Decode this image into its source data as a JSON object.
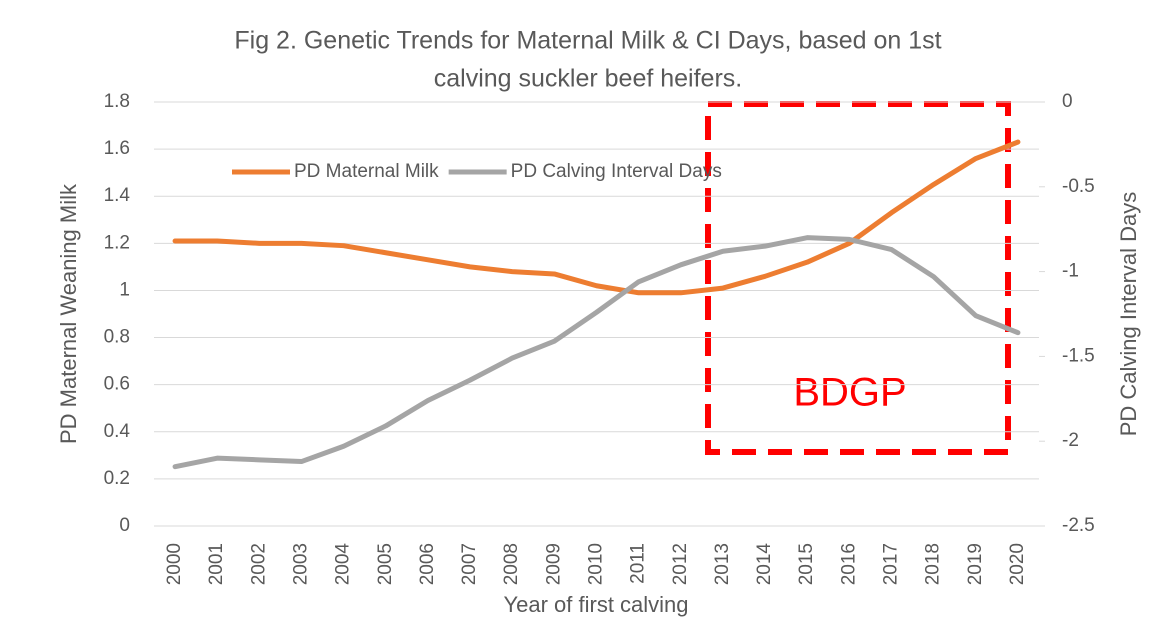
{
  "chart_data": {
    "type": "line",
    "title": [
      "Fig 2. Genetic Trends for Maternal Milk & CI Days, based on 1st",
      "calving suckler beef heifers."
    ],
    "x_label": "Year of first calving",
    "y_label": "PD Maternal Weaning Milk",
    "y2_label": "PD Calving Interval Days",
    "categories": [
      "2000",
      "2001",
      "2002",
      "2003",
      "2004",
      "2005",
      "2006",
      "2007",
      "2008",
      "2009",
      "2010",
      "2011",
      "2012",
      "2013",
      "2014",
      "2015",
      "2016",
      "2017",
      "2018",
      "2019",
      "2020"
    ],
    "series": [
      {
        "name": "PD Maternal Milk",
        "color": "#ed7d31",
        "axis": "y",
        "values": [
          1.21,
          1.21,
          1.2,
          1.2,
          1.19,
          1.16,
          1.13,
          1.1,
          1.08,
          1.07,
          1.02,
          0.99,
          0.99,
          1.01,
          1.06,
          1.12,
          1.2,
          1.33,
          1.45,
          1.56,
          1.63
        ]
      },
      {
        "name": "PD Calving Interval Days",
        "color": "#a5a5a5",
        "axis": "y2",
        "values": [
          -2.15,
          -2.1,
          -2.11,
          -2.12,
          -2.03,
          -1.91,
          -1.76,
          -1.64,
          -1.51,
          -1.41,
          -1.24,
          -1.06,
          -0.96,
          -0.88,
          -0.85,
          -0.8,
          -0.81,
          -0.87,
          -1.03,
          -1.26,
          -1.36
        ]
      }
    ],
    "ylim": [
      0,
      1.8
    ],
    "yticks": [
      0,
      0.2,
      0.4,
      0.6,
      0.8,
      1,
      1.2,
      1.4,
      1.6,
      1.8
    ],
    "y2lim": [
      -2.5,
      0
    ],
    "y2ticks": [
      -2.5,
      -2,
      -1.5,
      -1,
      -0.5,
      0
    ],
    "grid": true,
    "legend": "top",
    "annotation": {
      "text": "BDGP",
      "color": "#ff0000"
    }
  }
}
